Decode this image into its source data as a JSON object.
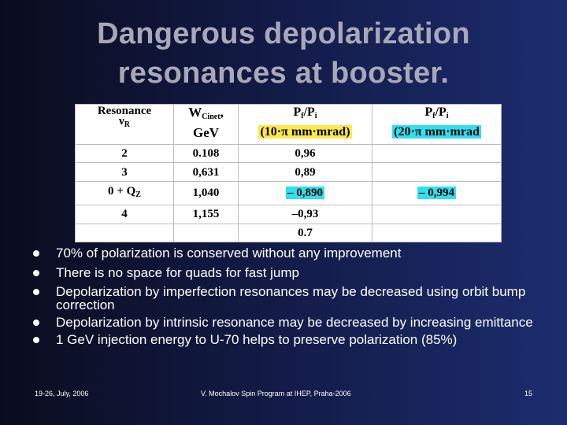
{
  "title_line1": "Dangerous depolarization",
  "title_line2": "resonances at booster.",
  "table": {
    "header": {
      "col1_main": "Resonance",
      "col1_sub": "ν",
      "col1_sub_idx": "R",
      "col2_main": "W",
      "col2_sub": "Cinet",
      "col2_unit": "GeV",
      "col3_ratio": "P",
      "col3_f": "f",
      "col3_sep": "/P",
      "col3_i": "i",
      "col3_emit": "(10·π  mm·mrad)",
      "col4_ratio": "P",
      "col4_f": "f",
      "col4_sep": "/P",
      "col4_i": "i",
      "col4_emit": "(20·π  mm·mrad"
    },
    "rows": [
      {
        "res": "2",
        "w": "0.108",
        "p10": "0,96",
        "p20": ""
      },
      {
        "res": "3",
        "w": "0,631",
        "p10": "0,89",
        "p20": ""
      },
      {
        "res": "0 + Q",
        "res_sub": "Z",
        "w": "1,040",
        "p10": "– 0,890",
        "p20": "– 0,994"
      },
      {
        "res": "4",
        "w": "1,155",
        "p10": "–0,93",
        "p20": ""
      },
      {
        "res": "",
        "w": "",
        "p10": "0.7",
        "p20": ""
      }
    ]
  },
  "bullets": [
    "70% of polarization is conserved without any improvement",
    "There is no space for quads for fast jump",
    "Depolarization by imperfection resonances may be decreased using orbit bump correction",
    "Depolarization by intrinsic resonance may be decreased by increasing emittance",
    "1 GeV injection energy to U-70 helps to preserve polarization (85%)"
  ],
  "footer": {
    "date": "19-26, July, 2006",
    "center": "V. Mochalov Spin Program at IHEP, Praha-2006",
    "page": "15"
  },
  "colors": {
    "highlight_yellow": "#ffe94a",
    "highlight_cyan": "#2fe0f0",
    "title": "#a8a8b8"
  }
}
